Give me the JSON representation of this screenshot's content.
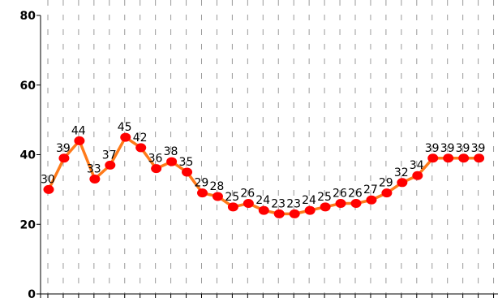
{
  "chart_data": {
    "type": "line",
    "title": "",
    "xlabel": "",
    "ylabel": "",
    "ylim": [
      0,
      80
    ],
    "yticks": [
      0,
      20,
      40,
      60,
      80
    ],
    "grid": true,
    "grid_style": "dashed vertical",
    "data_labels": true,
    "colors": {
      "line": "#ff7a1a",
      "marker": "#ff0000",
      "axis": "#000000",
      "grid": "#9a9a9a"
    },
    "series": [
      {
        "values": [
          30,
          39,
          44,
          33,
          37,
          45,
          42,
          36,
          38,
          35,
          29,
          28,
          25,
          26,
          24,
          23,
          23,
          24,
          25,
          26,
          26,
          27,
          29,
          32,
          34,
          39,
          39,
          39,
          39
        ]
      }
    ]
  }
}
